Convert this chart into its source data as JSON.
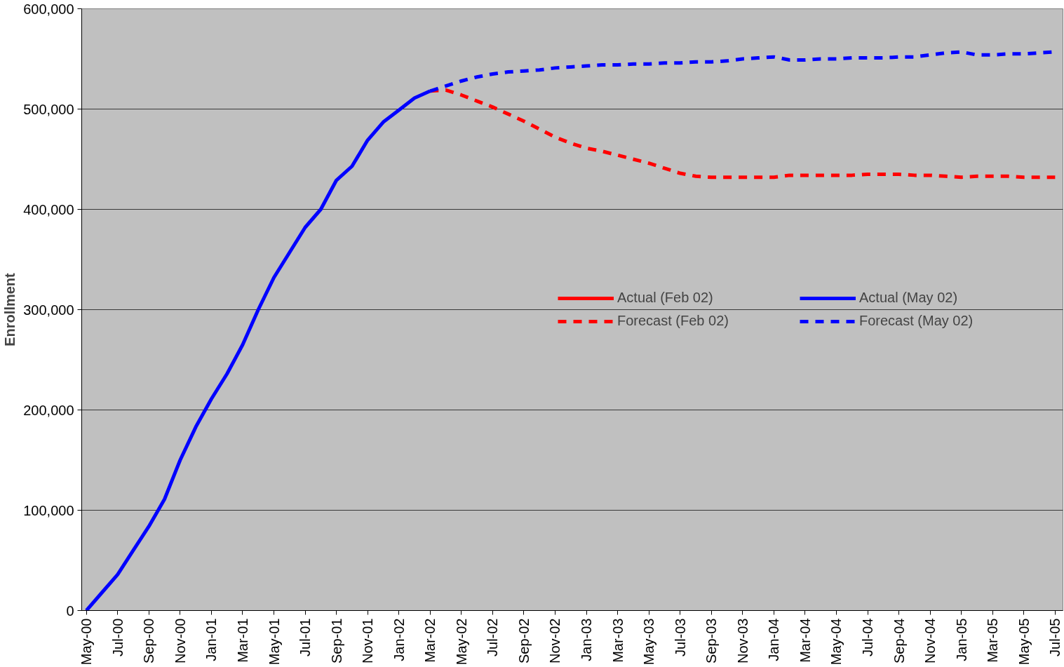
{
  "chart_data": {
    "type": "line",
    "ylabel": "Enrollment",
    "categories": [
      "May-00",
      null,
      "Jul-00",
      null,
      "Sep-00",
      null,
      "Nov-00",
      null,
      "Jan-01",
      null,
      "Mar-01",
      null,
      "May-01",
      null,
      "Jul-01",
      null,
      "Sep-01",
      null,
      "Nov-01",
      null,
      "Jan-02",
      null,
      "Mar-02",
      null,
      "May-02",
      null,
      "Jul-02",
      null,
      "Sep-02",
      null,
      "Nov-02",
      null,
      "Jan-03",
      null,
      "Mar-03",
      null,
      "May-03",
      null,
      "Jul-03",
      null,
      "Sep-03",
      null,
      "Nov-03",
      null,
      "Jan-04",
      null,
      "Mar-04",
      null,
      "May-04",
      null,
      "Jul-04",
      null,
      "Sep-04",
      null,
      "Nov-04",
      null,
      "Jan-05",
      null,
      "Mar-05",
      null,
      "May-05",
      null,
      "Jul-05"
    ],
    "series": [
      {
        "name": "Actual (Feb 02)",
        "color": "#ff0000",
        "line_style": "solid",
        "values": [
          null,
          null,
          null,
          null,
          null,
          null,
          null,
          null,
          null,
          null,
          null,
          null,
          null,
          null,
          null,
          null,
          null,
          null,
          null,
          null,
          null,
          null,
          null,
          null,
          null,
          null,
          null,
          null,
          null,
          null,
          null,
          null,
          null,
          null,
          null,
          null,
          null,
          null,
          null,
          null,
          null,
          null,
          null,
          null,
          null,
          null,
          null,
          null,
          null,
          null,
          null,
          null,
          null,
          null,
          null,
          null,
          null,
          null,
          null,
          null,
          null,
          null,
          null
        ]
      },
      {
        "name": "Forecast (Feb 02)",
        "color": "#ff0000",
        "line_style": "dashed",
        "values": [
          null,
          null,
          null,
          null,
          null,
          null,
          null,
          null,
          null,
          null,
          null,
          null,
          null,
          null,
          null,
          null,
          null,
          null,
          null,
          null,
          null,
          null,
          518000,
          519000,
          514000,
          508000,
          502000,
          495000,
          488000,
          480000,
          472000,
          466000,
          461000,
          458000,
          454000,
          450000,
          446000,
          441000,
          436000,
          433000,
          432000,
          432000,
          432000,
          432000,
          432000,
          434000,
          434000,
          434000,
          434000,
          434000,
          435000,
          435000,
          435000,
          434000,
          434000,
          433000,
          432000,
          433000,
          433000,
          433000,
          432000,
          432000,
          432000
        ]
      },
      {
        "name": "Actual (May 02)",
        "color": "#0000ff",
        "line_style": "solid",
        "values": [
          0,
          18000,
          36000,
          60000,
          84000,
          111000,
          150000,
          183000,
          211000,
          236000,
          265000,
          300000,
          332000,
          357000,
          382000,
          400000,
          429000,
          443000,
          469000,
          487000,
          499000,
          511000,
          518000,
          null,
          null,
          null,
          null,
          null,
          null,
          null,
          null,
          null,
          null,
          null,
          null,
          null,
          null,
          null,
          null,
          null,
          null,
          null,
          null,
          null,
          null,
          null,
          null,
          null,
          null,
          null,
          null,
          null,
          null,
          null,
          null,
          null,
          null,
          null,
          null,
          null,
          null,
          null,
          null
        ]
      },
      {
        "name": "Forecast (May 02)",
        "color": "#0000ff",
        "line_style": "dashed",
        "values": [
          null,
          null,
          null,
          null,
          null,
          null,
          null,
          null,
          null,
          null,
          null,
          null,
          null,
          null,
          null,
          null,
          null,
          null,
          null,
          null,
          null,
          null,
          518000,
          523000,
          528000,
          532000,
          535000,
          537000,
          538000,
          539000,
          541000,
          542000,
          543000,
          544000,
          544000,
          545000,
          545000,
          546000,
          546000,
          547000,
          547000,
          548000,
          550000,
          551000,
          552000,
          549000,
          549000,
          550000,
          550000,
          551000,
          551000,
          551000,
          552000,
          552000,
          554000,
          556000,
          557000,
          554000,
          554000,
          555000,
          555000,
          556000,
          557000
        ]
      }
    ],
    "ylim": [
      0,
      600000
    ],
    "yticks": [
      0,
      {
        "value": 100000,
        "label": "100,000"
      },
      {
        "value": 200000,
        "label": "200,000"
      },
      {
        "value": 300000,
        "label": "300,000"
      },
      {
        "value": 400000,
        "label": "400,000"
      },
      {
        "value": 500000,
        "label": "500,000"
      },
      {
        "value": 600000,
        "label": "600,000"
      }
    ],
    "grid": "y",
    "legend": "right",
    "marker": "none"
  }
}
